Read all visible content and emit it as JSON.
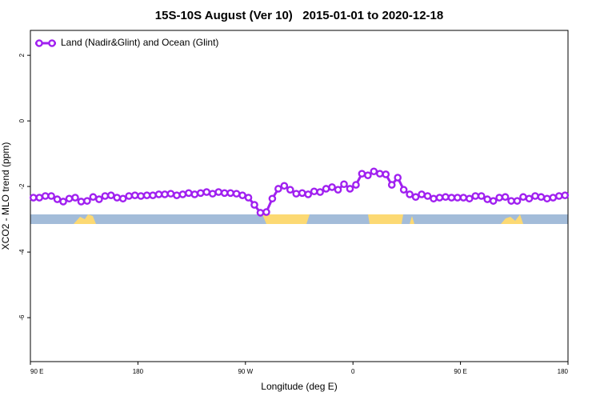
{
  "chart_data": {
    "type": "line",
    "title": "15S-10S August (Ver 10)   2015-01-01 to 2020-12-18",
    "xlabel": "Longitude (deg E)",
    "ylabel": "XCO2 - MLO trend (ppm)",
    "xlim": [
      90,
      540
    ],
    "ylim": [
      -7.34,
      2.76
    ],
    "xticks": [
      {
        "value": 90,
        "label": "90 E"
      },
      {
        "value": 180,
        "label": "180"
      },
      {
        "value": 270,
        "label": "90 W"
      },
      {
        "value": 360,
        "label": "0"
      },
      {
        "value": 450,
        "label": "90 E"
      },
      {
        "value": 540,
        "label": "180"
      }
    ],
    "yticks": [
      2,
      0,
      -2,
      -4,
      -6
    ],
    "grid": false,
    "legend": "topleft",
    "x": [
      92.5,
      97.5,
      102.5,
      107.5,
      112.5,
      117.5,
      122.5,
      127.5,
      132.5,
      137.5,
      142.5,
      147.5,
      152.5,
      157.5,
      162.5,
      167.5,
      172.5,
      177.5,
      182.5,
      187.5,
      192.5,
      197.5,
      202.5,
      207.5,
      212.5,
      217.5,
      222.5,
      227.5,
      232.5,
      237.5,
      242.5,
      247.5,
      252.5,
      257.5,
      262.5,
      267.5,
      272.5,
      277.5,
      282.5,
      287.5,
      292.5,
      297.5,
      302.5,
      307.5,
      312.5,
      317.5,
      322.5,
      327.5,
      332.5,
      337.5,
      342.5,
      347.5,
      352.5,
      357.5,
      362.5,
      367.5,
      372.5,
      377.5,
      382.5,
      387.5,
      392.5,
      397.5,
      402.5,
      407.5,
      412.5,
      417.5,
      422.5,
      427.5,
      432.5,
      437.5,
      442.5,
      447.5,
      452.5,
      457.5,
      462.5,
      467.5,
      472.5,
      477.5,
      482.5,
      487.5,
      492.5,
      497.5,
      502.5,
      507.5,
      512.5,
      517.5,
      522.5,
      527.5,
      532.5,
      537.5
    ],
    "series": [
      {
        "name": "Land (Nadir&Glint) and Ocean (Glint)",
        "color": "#a020f0",
        "values": [
          -2.34,
          -2.34,
          -2.29,
          -2.29,
          -2.39,
          -2.46,
          -2.37,
          -2.34,
          -2.46,
          -2.44,
          -2.32,
          -2.39,
          -2.29,
          -2.27,
          -2.34,
          -2.37,
          -2.29,
          -2.27,
          -2.29,
          -2.27,
          -2.27,
          -2.24,
          -2.24,
          -2.22,
          -2.27,
          -2.24,
          -2.2,
          -2.24,
          -2.2,
          -2.17,
          -2.22,
          -2.17,
          -2.2,
          -2.2,
          -2.22,
          -2.27,
          -2.34,
          -2.56,
          -2.8,
          -2.78,
          -2.37,
          -2.07,
          -1.98,
          -2.1,
          -2.22,
          -2.2,
          -2.24,
          -2.15,
          -2.17,
          -2.07,
          -2.02,
          -2.1,
          -1.93,
          -2.07,
          -1.95,
          -1.61,
          -1.66,
          -1.54,
          -1.61,
          -1.63,
          -1.95,
          -1.73,
          -2.1,
          -2.24,
          -2.32,
          -2.24,
          -2.29,
          -2.37,
          -2.34,
          -2.32,
          -2.34,
          -2.34,
          -2.34,
          -2.37,
          -2.29,
          -2.29,
          -2.39,
          -2.44,
          -2.34,
          -2.32,
          -2.44,
          -2.44,
          -2.32,
          -2.37,
          -2.29,
          -2.32,
          -2.37,
          -2.34,
          -2.29,
          -2.27
        ]
      }
    ]
  }
}
